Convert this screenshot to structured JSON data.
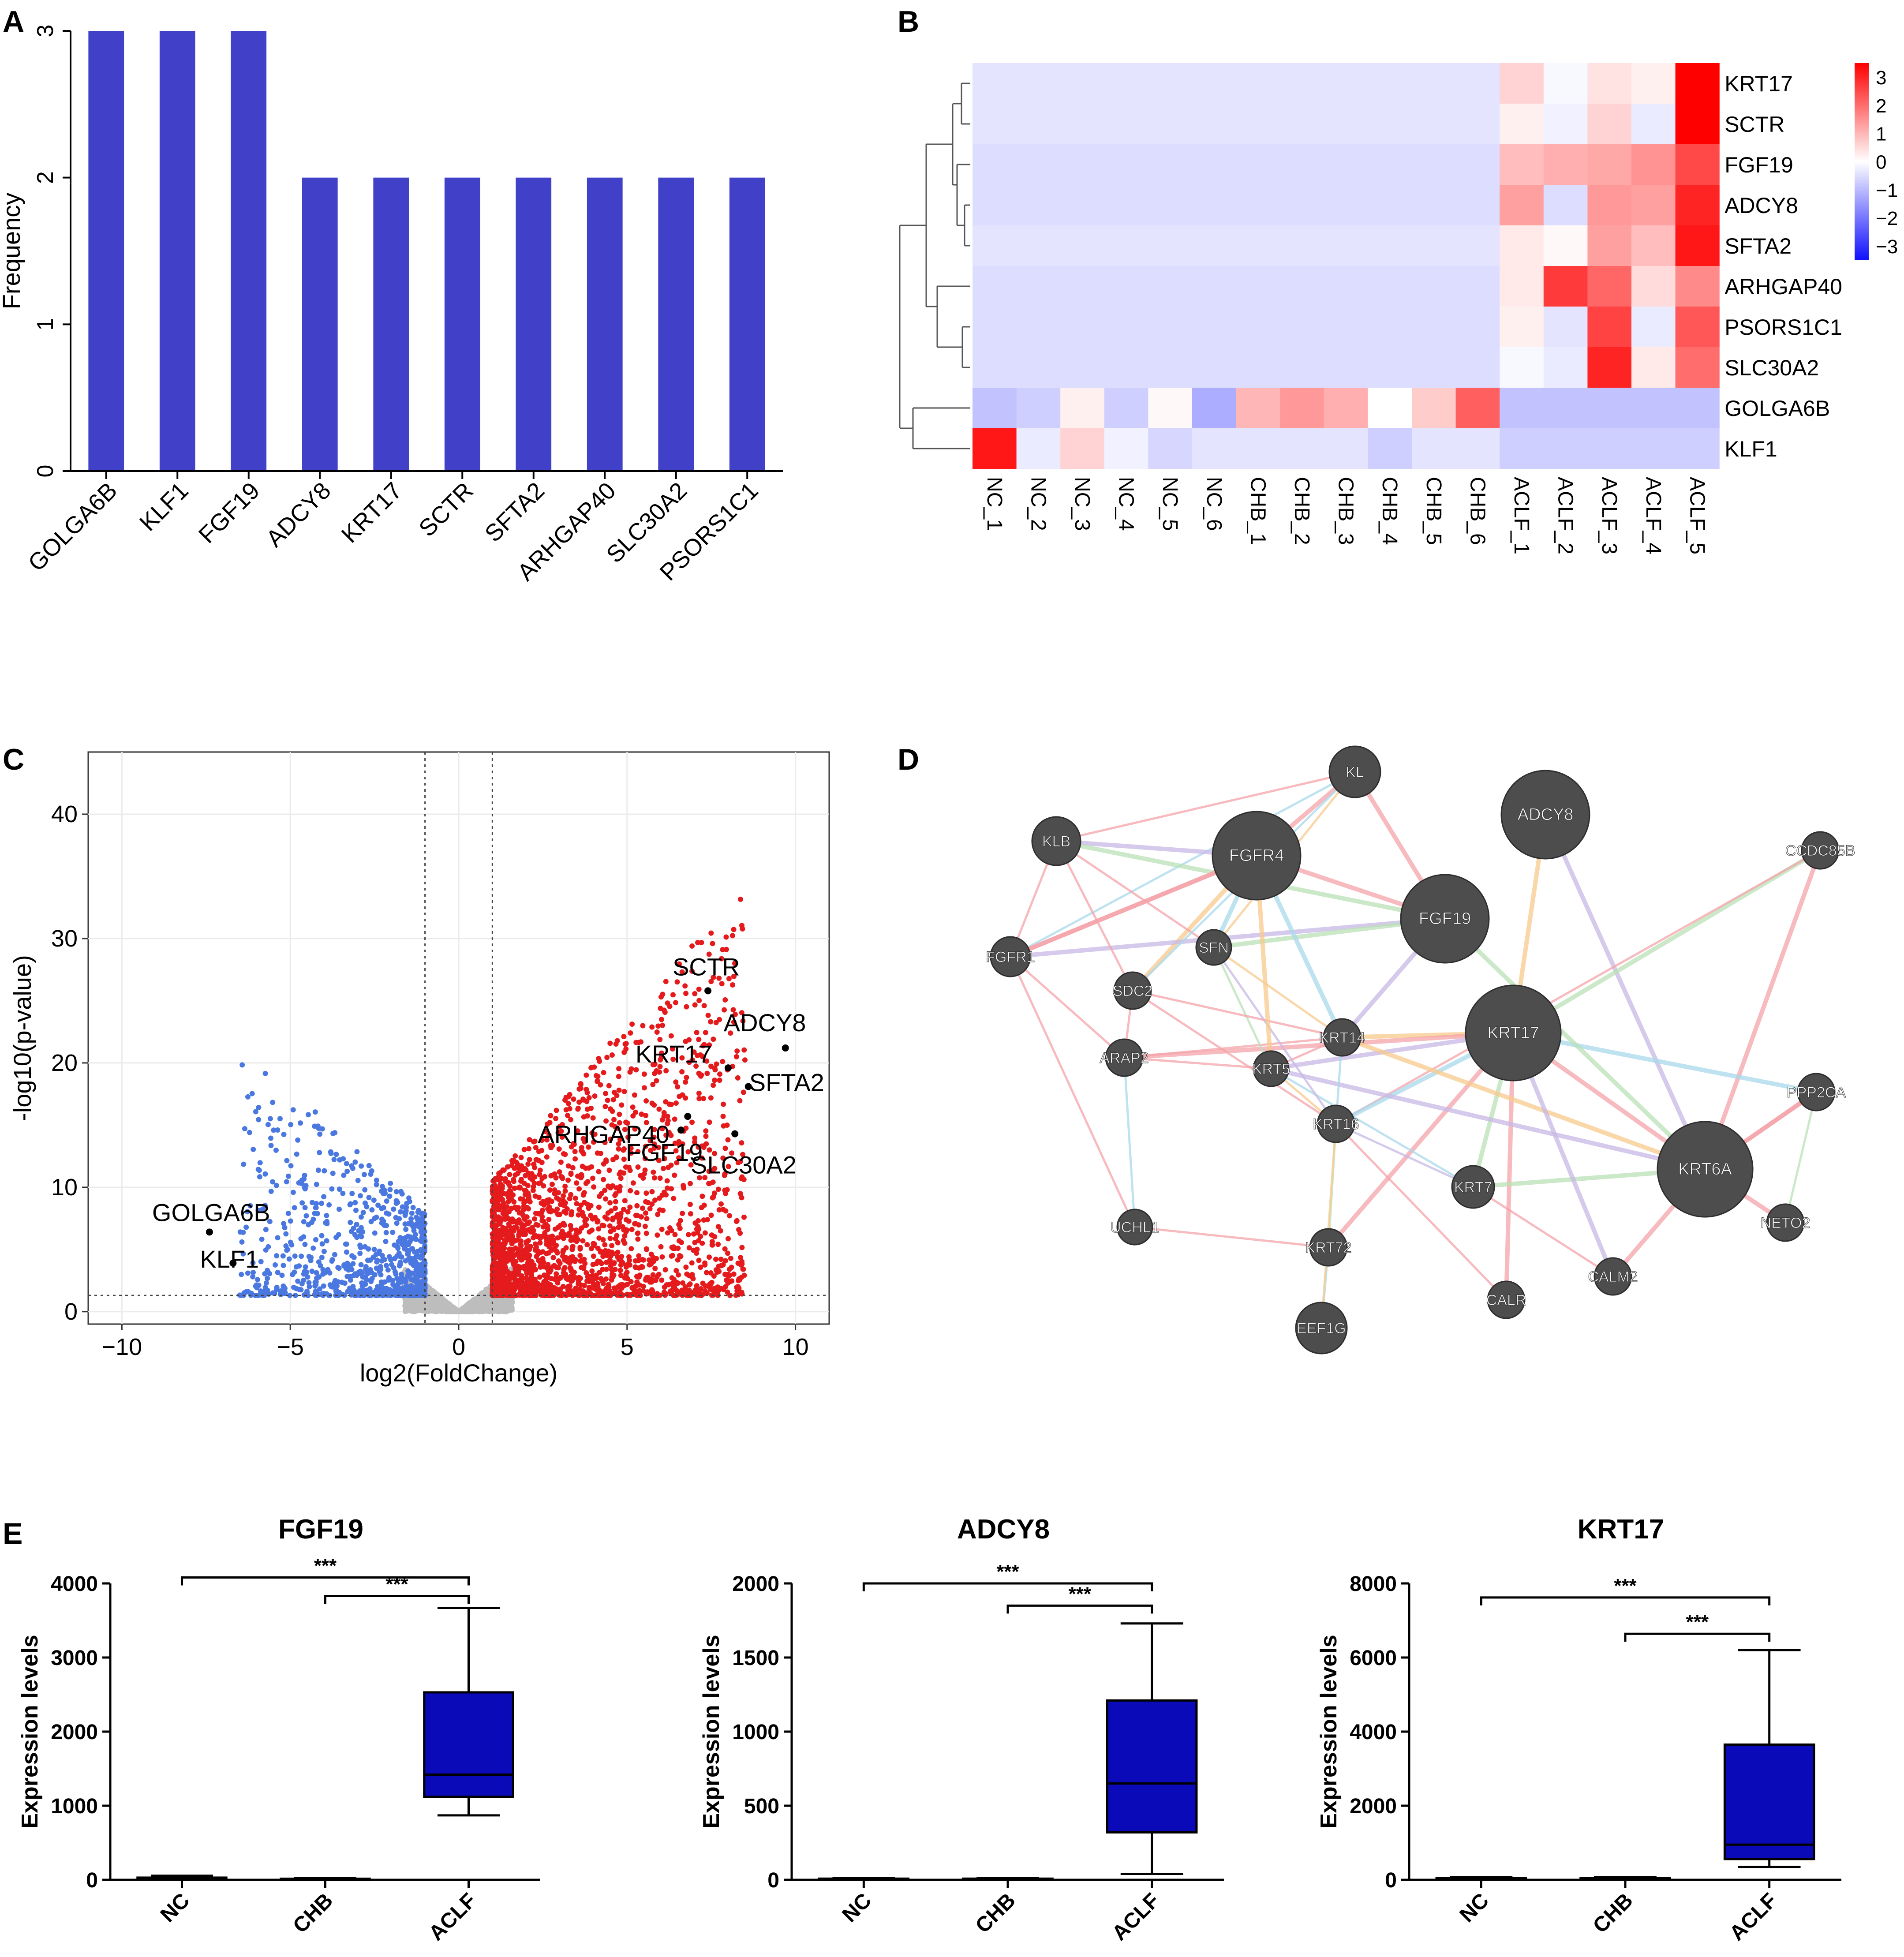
{
  "colors": {
    "bar": "#4040c8",
    "heat_low": "#1010ff",
    "heat_mid": "#ffffff",
    "heat_high": "#ff0000",
    "volcano_up": "#e41a1c",
    "volcano_down": "#4a78e0",
    "volcano_ns": "#bdbdbd",
    "box": "#0a0ab8",
    "node": "#4d4d4d"
  },
  "panels": {
    "a": "A",
    "b": "B",
    "c": "C",
    "d": "D",
    "e": "E"
  },
  "chart_data": [
    {
      "id": "A",
      "type": "bar",
      "categories": [
        "GOLGA6B",
        "KLF1",
        "FGF19",
        "ADCY8",
        "KRT17",
        "SCTR",
        "SFTA2",
        "ARHGAP40",
        "SLC30A2",
        "PSORS1C1"
      ],
      "values": [
        3,
        3,
        3,
        2,
        2,
        2,
        2,
        2,
        2,
        2
      ],
      "ylabel": "Frequency",
      "ylim": [
        0,
        3
      ],
      "yticks": [
        0,
        1,
        2,
        3
      ]
    },
    {
      "id": "B",
      "type": "heatmap",
      "rows": [
        "KRT17",
        "SCTR",
        "FGF19",
        "ADCY8",
        "SFTA2",
        "ARHGAP40",
        "PSORS1C1",
        "SLC30A2",
        "GOLGA6B",
        "KLF1"
      ],
      "cols": [
        "NC_1",
        "NC_2",
        "NC_3",
        "NC_4",
        "NC_5",
        "NC_6",
        "CHB_1",
        "CHB_2",
        "CHB_3",
        "CHB_4",
        "CHB_5",
        "CHB_6",
        "ACLF_1",
        "ACLF_2",
        "ACLF_3",
        "ACLF_4",
        "ACLF_5"
      ],
      "values": [
        [
          -0.4,
          -0.4,
          -0.4,
          -0.4,
          -0.4,
          -0.4,
          -0.4,
          -0.4,
          -0.4,
          -0.4,
          -0.4,
          -0.4,
          0.6,
          -0.1,
          0.4,
          0.2,
          3.5
        ],
        [
          -0.4,
          -0.4,
          -0.4,
          -0.4,
          -0.4,
          -0.4,
          -0.4,
          -0.4,
          -0.4,
          -0.4,
          -0.4,
          -0.4,
          0.2,
          -0.2,
          0.6,
          -0.3,
          3.5
        ],
        [
          -0.5,
          -0.5,
          -0.5,
          -0.5,
          -0.5,
          -0.5,
          -0.5,
          -0.5,
          -0.5,
          -0.5,
          -0.5,
          -0.5,
          0.9,
          1.1,
          1.2,
          1.5,
          2.5
        ],
        [
          -0.5,
          -0.5,
          -0.5,
          -0.5,
          -0.5,
          -0.5,
          -0.5,
          -0.5,
          -0.5,
          -0.5,
          -0.5,
          -0.5,
          1.3,
          -0.5,
          1.4,
          1.3,
          3.0
        ],
        [
          -0.4,
          -0.4,
          -0.4,
          -0.4,
          -0.4,
          -0.4,
          -0.4,
          -0.4,
          -0.4,
          -0.4,
          -0.4,
          -0.4,
          0.3,
          0.1,
          1.3,
          0.9,
          3.2
        ],
        [
          -0.5,
          -0.5,
          -0.5,
          -0.5,
          -0.5,
          -0.5,
          -0.5,
          -0.5,
          -0.5,
          -0.5,
          -0.5,
          -0.5,
          0.3,
          2.7,
          2.1,
          0.5,
          1.6
        ],
        [
          -0.5,
          -0.5,
          -0.5,
          -0.5,
          -0.5,
          -0.5,
          -0.5,
          -0.5,
          -0.5,
          -0.5,
          -0.5,
          -0.5,
          0.2,
          -0.4,
          2.6,
          -0.3,
          2.3
        ],
        [
          -0.5,
          -0.5,
          -0.5,
          -0.5,
          -0.5,
          -0.5,
          -0.5,
          -0.5,
          -0.5,
          -0.5,
          -0.5,
          -0.5,
          -0.1,
          -0.3,
          3.0,
          0.3,
          2.0
        ],
        [
          -0.9,
          -0.7,
          0.2,
          -0.7,
          0.1,
          -1.2,
          1.0,
          1.4,
          1.1,
          0.0,
          0.7,
          2.2,
          -0.9,
          -0.9,
          -0.9,
          -0.9,
          -0.9
        ],
        [
          3.2,
          -0.3,
          0.6,
          -0.2,
          -0.6,
          -0.4,
          -0.4,
          -0.4,
          -0.4,
          -0.7,
          -0.4,
          -0.4,
          -0.7,
          -0.7,
          -0.7,
          -0.7,
          -0.7
        ]
      ],
      "legend_ticks": [
        3,
        2,
        1,
        0,
        -1,
        -2,
        -3
      ],
      "legend_range": [
        -3.5,
        3.5
      ]
    },
    {
      "id": "C",
      "type": "scatter",
      "xlabel": "log2(FoldChange)",
      "ylabel": "-log10(p-value)",
      "xlim": [
        -11,
        11
      ],
      "ylim": [
        -1,
        45
      ],
      "xticks": [
        -10,
        -5,
        0,
        5,
        10
      ],
      "yticks": [
        0,
        10,
        20,
        30,
        40
      ],
      "fc_cutoff": [
        -1,
        1
      ],
      "p_cutoff": 1.3,
      "labeled_points": [
        {
          "label": "SCTR",
          "x": 7.4,
          "y": 25.8
        },
        {
          "label": "ADCY8",
          "x": 9.7,
          "y": 21.2
        },
        {
          "label": "KRT17",
          "x": 8.0,
          "y": 19.6
        },
        {
          "label": "SFTA2",
          "x": 8.6,
          "y": 18.1
        },
        {
          "label": "ARHGAP40",
          "x": 6.8,
          "y": 15.7
        },
        {
          "label": "FGF19",
          "x": 6.6,
          "y": 14.6
        },
        {
          "label": "SLC30A2",
          "x": 8.2,
          "y": 14.3
        },
        {
          "label": "GOLGA6B",
          "x": -7.4,
          "y": 6.4
        },
        {
          "label": "KLF1",
          "x": -6.7,
          "y": 3.9
        }
      ]
    },
    {
      "id": "E1",
      "type": "box",
      "title": "FGF19",
      "ylabel": "Expression levels",
      "categories": [
        "NC",
        "CHB",
        "ACLF"
      ],
      "ylim": [
        0,
        4000
      ],
      "yticks": [
        0,
        1000,
        2000,
        3000,
        4000
      ],
      "boxes": [
        {
          "min": 0,
          "q1": 5,
          "median": 15,
          "q3": 30,
          "max": 55
        },
        {
          "min": 0,
          "q1": 3,
          "median": 8,
          "q3": 15,
          "max": 25
        },
        {
          "min": 870,
          "q1": 1120,
          "median": 1420,
          "q3": 2530,
          "max": 3670
        }
      ],
      "sig": [
        {
          "from": 0,
          "to": 2,
          "label": "***",
          "y": 4080
        },
        {
          "from": 1,
          "to": 2,
          "label": "***",
          "y": 3830
        }
      ]
    },
    {
      "id": "E2",
      "type": "box",
      "title": "ADCY8",
      "ylabel": "Expression levels",
      "categories": [
        "NC",
        "CHB",
        "ACLF"
      ],
      "ylim": [
        0,
        2000
      ],
      "yticks": [
        0,
        500,
        1000,
        1500,
        2000
      ],
      "boxes": [
        {
          "min": 0,
          "q1": 2,
          "median": 5,
          "q3": 8,
          "max": 12
        },
        {
          "min": 0,
          "q1": 2,
          "median": 5,
          "q3": 8,
          "max": 12
        },
        {
          "min": 40,
          "q1": 320,
          "median": 650,
          "q3": 1210,
          "max": 1730
        }
      ],
      "sig": [
        {
          "from": 0,
          "to": 2,
          "label": "***",
          "y": 2000
        },
        {
          "from": 1,
          "to": 2,
          "label": "***",
          "y": 1850
        }
      ]
    },
    {
      "id": "E3",
      "type": "box",
      "title": "KRT17",
      "ylabel": "Expression levels",
      "categories": [
        "NC",
        "CHB",
        "ACLF"
      ],
      "ylim": [
        0,
        8000
      ],
      "yticks": [
        0,
        2000,
        4000,
        6000,
        8000
      ],
      "boxes": [
        {
          "min": 0,
          "q1": 10,
          "median": 25,
          "q3": 45,
          "max": 70
        },
        {
          "min": 0,
          "q1": 10,
          "median": 25,
          "q3": 45,
          "max": 70
        },
        {
          "min": 350,
          "q1": 560,
          "median": 950,
          "q3": 3650,
          "max": 6200
        }
      ],
      "sig": [
        {
          "from": 0,
          "to": 2,
          "label": "***",
          "y": 7620
        },
        {
          "from": 1,
          "to": 2,
          "label": "***",
          "y": 6640
        }
      ]
    }
  ],
  "network": {
    "nodes": [
      {
        "label": "KL"
      },
      {
        "label": "ADCY8"
      },
      {
        "label": "KLB"
      },
      {
        "label": "FGFR4"
      },
      {
        "label": "CCDC85B"
      },
      {
        "label": "FGF19"
      },
      {
        "label": "FGFR1"
      },
      {
        "label": "SFN"
      },
      {
        "label": "SDC2"
      },
      {
        "label": "KRT17"
      },
      {
        "label": "KRT14"
      },
      {
        "label": "ARAP2"
      },
      {
        "label": "KRT5"
      },
      {
        "label": "PPP2CA"
      },
      {
        "label": "KRT16"
      },
      {
        "label": "KRT6A"
      },
      {
        "label": "KRT7"
      },
      {
        "label": "UCHL1"
      },
      {
        "label": "NETO2"
      },
      {
        "label": "KRT72"
      },
      {
        "label": "CALM2"
      },
      {
        "label": "CALR"
      },
      {
        "label": "EEF1G"
      }
    ]
  }
}
